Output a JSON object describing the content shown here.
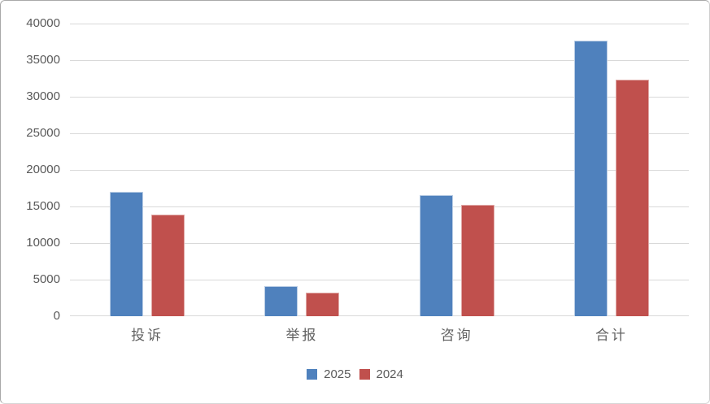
{
  "figure": {
    "background": "#ffffff",
    "border_color": "#a9a9a9"
  },
  "chart_data": {
    "type": "bar",
    "title": "",
    "xlabel": "",
    "ylabel": "",
    "categories": [
      "投诉",
      "举报",
      "咨询",
      "合计"
    ],
    "series": [
      {
        "name": "2025",
        "color": "#4F81BD",
        "border_color": "#b8cce4",
        "values": [
          17000,
          4100,
          16600,
          37700
        ]
      },
      {
        "name": "2024",
        "color": "#C0504D",
        "border_color": "#e0a9a7",
        "values": [
          13900,
          3200,
          15200,
          32300
        ]
      }
    ],
    "ylim": [
      0,
      40000
    ],
    "ytick_step": 5000,
    "yticks": [
      0,
      5000,
      10000,
      15000,
      20000,
      25000,
      30000,
      35000,
      40000
    ],
    "grid": true,
    "gridline_color": "#d9d9d9",
    "axis_label_color": "#595959",
    "legend_position": "bottom",
    "legend_labels": [
      "2025",
      "2024"
    ]
  }
}
